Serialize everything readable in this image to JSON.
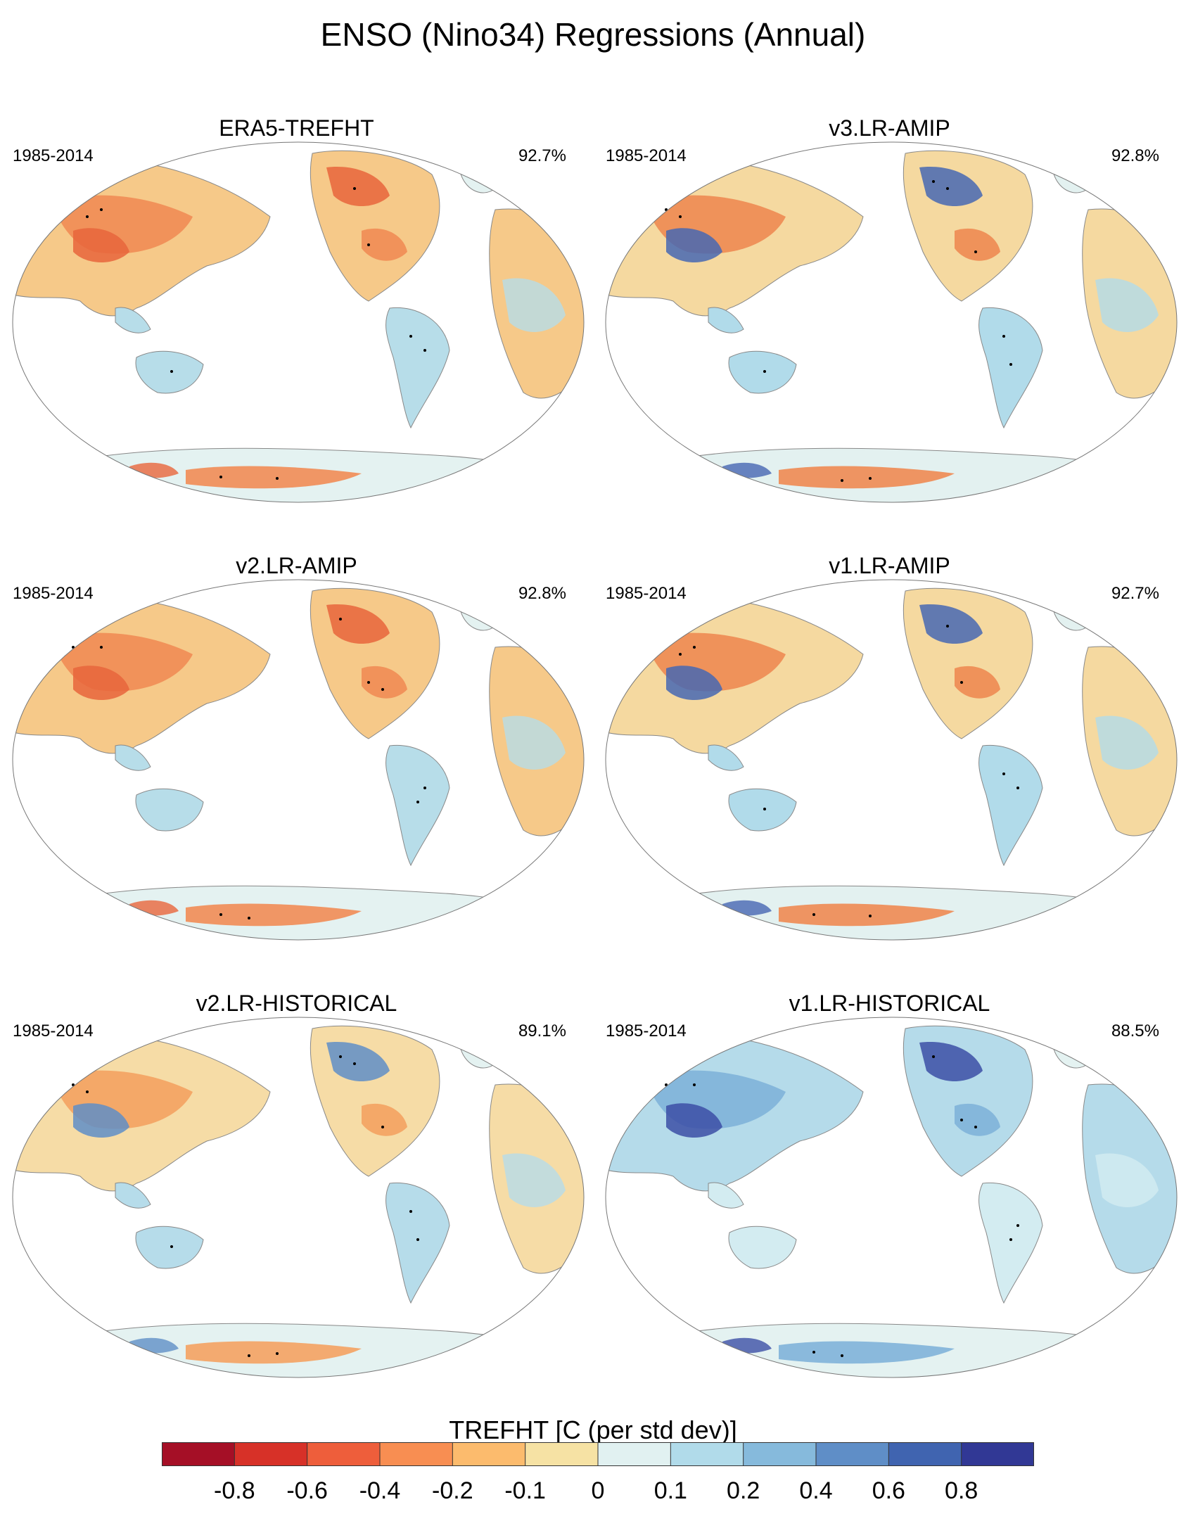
{
  "title": "ENSO (Nino34) Regressions (Annual)",
  "panels": [
    {
      "title": "ERA5-TREFHT",
      "period": "1985-2014",
      "pct": "92.7%",
      "style": "warm"
    },
    {
      "title": "v3.LR-AMIP",
      "period": "1985-2014",
      "pct": "92.8%",
      "style": "mixed"
    },
    {
      "title": "v2.LR-AMIP",
      "period": "1985-2014",
      "pct": "92.8%",
      "style": "warm"
    },
    {
      "title": "v1.LR-AMIP",
      "period": "1985-2014",
      "pct": "92.7%",
      "style": "mixed"
    },
    {
      "title": "v2.LR-HISTORICAL",
      "period": "1985-2014",
      "pct": "89.1%",
      "style": "mild"
    },
    {
      "title": "v1.LR-HISTORICAL",
      "period": "1985-2014",
      "pct": "88.5%",
      "style": "cool"
    }
  ],
  "colorbar": {
    "title": "TREFHT [C (per std dev)]",
    "labels": [
      "-0.8",
      "-0.6",
      "-0.4",
      "-0.2",
      "-0.1",
      "0",
      "0.1",
      "0.2",
      "0.4",
      "0.6",
      "0.8"
    ],
    "colors": [
      "#a50f26",
      "#d73128",
      "#ee5e3b",
      "#f88e52",
      "#fcbb6d",
      "#f6e2a4",
      "#e1f1f1",
      "#b1dbea",
      "#86badc",
      "#5f8ec7",
      "#4064b0",
      "#313895"
    ]
  }
}
